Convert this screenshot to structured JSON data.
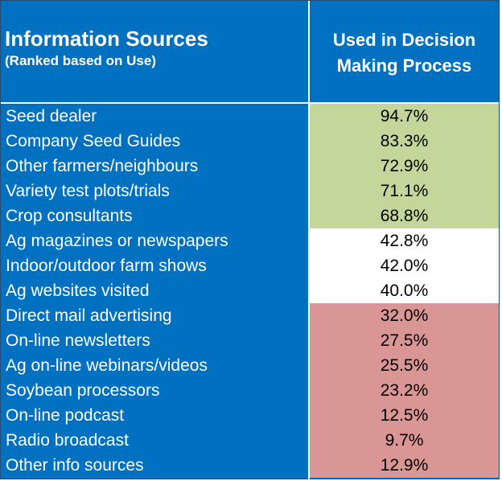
{
  "header": {
    "title": "Information Sources",
    "subtitle": "(Ranked based on Use)",
    "value_header_line1": "Used in Decision",
    "value_header_line2": "Making Process"
  },
  "colors": {
    "high": "#c4d79b",
    "mid": "#ffffff",
    "low": "#da9694",
    "label_bg": "#0070c0"
  },
  "rows": [
    {
      "label": "Seed dealer",
      "value": "94.7%",
      "tier": "high"
    },
    {
      "label": "Company Seed Guides",
      "value": "83.3%",
      "tier": "high"
    },
    {
      "label": "Other farmers/neighbours",
      "value": "72.9%",
      "tier": "high"
    },
    {
      "label": "Variety test plots/trials",
      "value": "71.1%",
      "tier": "high"
    },
    {
      "label": "Crop consultants",
      "value": "68.8%",
      "tier": "high"
    },
    {
      "label": "Ag magazines or newspapers",
      "value": "42.8%",
      "tier": "mid"
    },
    {
      "label": "Indoor/outdoor farm shows",
      "value": "42.0%",
      "tier": "mid"
    },
    {
      "label": "Ag websites visited",
      "value": "40.0%",
      "tier": "mid"
    },
    {
      "label": "Direct mail advertising",
      "value": "32.0%",
      "tier": "low"
    },
    {
      "label": "On-line newsletters",
      "value": "27.5%",
      "tier": "low"
    },
    {
      "label": "Ag on-line webinars/videos",
      "value": "25.5%",
      "tier": "low"
    },
    {
      "label": "Soybean processors",
      "value": "23.2%",
      "tier": "low"
    },
    {
      "label": "On-line podcast",
      "value": "12.5%",
      "tier": "low"
    },
    {
      "label": "Radio broadcast",
      "value": "9.7%",
      "tier": "low"
    },
    {
      "label": "Other info sources",
      "value": "12.9%",
      "tier": "low"
    }
  ]
}
